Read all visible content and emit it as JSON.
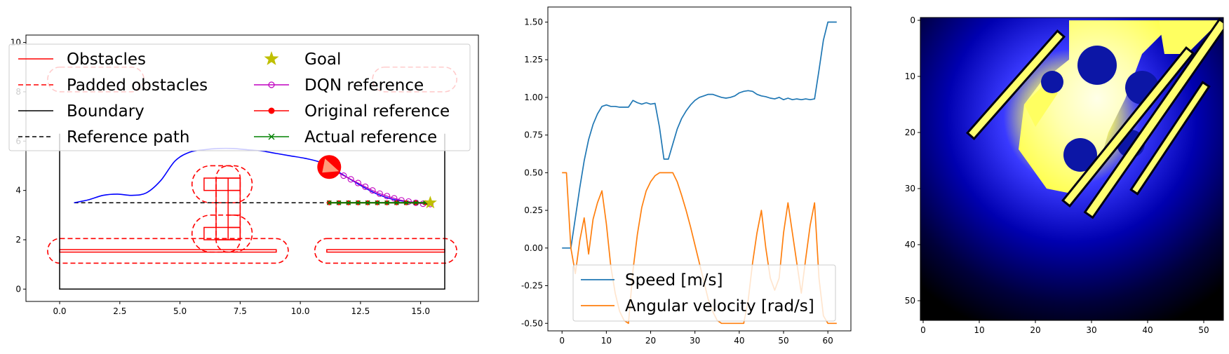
{
  "chart_data": [
    {
      "type": "line",
      "xlim": [
        -1.4,
        17.4
      ],
      "ylim": [
        -0.5,
        10.3
      ],
      "x_ticks": [
        "0.0",
        "2.5",
        "5.0",
        "7.5",
        "10.0",
        "12.5",
        "15.0"
      ],
      "x_tick_values": [
        0,
        2.5,
        5,
        7.5,
        10,
        12.5,
        15
      ],
      "y_ticks": [
        "0",
        "2",
        "4",
        "6",
        "8",
        "10"
      ],
      "y_tick_values": [
        0,
        2,
        4,
        6,
        8,
        10
      ],
      "legend_position": "upper",
      "legend": [
        "Obstacles",
        "Padded obstacles",
        "Boundary",
        "Reference path",
        "Goal",
        "DQN reference",
        "Original reference",
        "Actual reference"
      ],
      "colors": {
        "obstacles": "#ff0000",
        "dqn": "#c000c0",
        "actual": "#008000",
        "goal": "#bfbf00",
        "path": "#0000ff"
      },
      "boundary": [
        [
          0,
          0
        ],
        [
          16,
          0
        ],
        [
          16,
          6.3
        ],
        [
          0,
          6.3
        ]
      ],
      "obstacles": [
        {
          "x0": 0,
          "y0": 1.5,
          "x1": 9.0,
          "y1": 1.6
        },
        {
          "x0": 11.1,
          "y0": 1.5,
          "x1": 16.0,
          "y1": 1.6
        },
        {
          "x0": 6.0,
          "y0": 2.0,
          "x1": 7.5,
          "y1": 2.5
        },
        {
          "x0": 6.0,
          "y0": 4.0,
          "x1": 7.5,
          "y1": 4.5
        },
        {
          "x0": 6.5,
          "y0": 2.0,
          "x1": 7.5,
          "y1": 4.5
        }
      ],
      "padded_obstacles": [
        {
          "x0": -0.5,
          "y0": 1.05,
          "x1": 9.5,
          "y1": 2.05
        },
        {
          "x0": 10.6,
          "y0": 1.05,
          "x1": 16.5,
          "y1": 2.05
        },
        {
          "x0": 5.5,
          "y0": 1.5,
          "x1": 8.0,
          "y1": 3.0
        },
        {
          "x0": 5.5,
          "y0": 3.5,
          "x1": 8.0,
          "y1": 5.0
        },
        {
          "x0": 6.5,
          "y0": 1.5,
          "x1": 7.5,
          "y1": 5.0
        },
        {
          "x0": -0.5,
          "y0": 8.0,
          "x1": 3.5,
          "y1": 9.0
        },
        {
          "x0": 13.0,
          "y0": 8.0,
          "x1": 16.5,
          "y1": 9.0
        }
      ],
      "reference_path": {
        "x": [
          0.6,
          15.4
        ],
        "y": [
          3.5,
          3.5
        ]
      },
      "trajectory": {
        "x": [
          0.6,
          1.2,
          1.8,
          2.4,
          3.0,
          3.6,
          4.2,
          4.8,
          5.4,
          6.0,
          6.6,
          7.2,
          7.8,
          8.4,
          9.0,
          9.6,
          10.2,
          10.8,
          11.4,
          12.0,
          12.6,
          13.2,
          13.8,
          14.4,
          15.0,
          15.4
        ],
        "y": [
          3.5,
          3.62,
          3.8,
          3.85,
          3.8,
          3.9,
          4.4,
          5.2,
          5.55,
          5.65,
          5.7,
          5.7,
          5.65,
          5.6,
          5.5,
          5.4,
          5.3,
          5.15,
          4.85,
          4.5,
          4.15,
          3.85,
          3.65,
          3.55,
          3.5,
          3.5
        ]
      },
      "dqn_reference": {
        "x": [
          11.2,
          11.5,
          11.8,
          12.1,
          12.4,
          12.7,
          13.0,
          13.3,
          13.6,
          13.9,
          14.2,
          14.5,
          14.8,
          15.1,
          15.4
        ],
        "y": [
          4.9,
          4.75,
          4.6,
          4.45,
          4.3,
          4.15,
          4.0,
          3.87,
          3.77,
          3.68,
          3.6,
          3.55,
          3.5,
          3.46,
          3.45
        ]
      },
      "original_reference": {
        "x": [
          11.2,
          11.6,
          12.0,
          12.4,
          12.8,
          13.2,
          13.6,
          14.0,
          14.4,
          14.8,
          15.2
        ],
        "y": [
          3.5,
          3.5,
          3.5,
          3.5,
          3.5,
          3.5,
          3.5,
          3.5,
          3.5,
          3.5,
          3.5
        ]
      },
      "actual_reference": {
        "x": [
          11.2,
          11.6,
          12.0,
          12.4,
          12.8,
          13.2,
          13.6,
          14.0,
          14.4,
          14.8,
          15.2
        ],
        "y": [
          3.5,
          3.5,
          3.5,
          3.5,
          3.5,
          3.5,
          3.5,
          3.5,
          3.5,
          3.5,
          3.5
        ]
      },
      "goal": {
        "x": 15.4,
        "y": 3.5
      },
      "robot": {
        "x": 11.2,
        "y": 4.95
      }
    },
    {
      "type": "line",
      "xlim": [
        -3.2,
        65.2
      ],
      "ylim": [
        -0.55,
        1.6
      ],
      "x_ticks": [
        "0",
        "10",
        "20",
        "30",
        "40",
        "50",
        "60"
      ],
      "x_tick_values": [
        0,
        10,
        20,
        30,
        40,
        50,
        60
      ],
      "y_ticks": [
        "-0.50",
        "-0.25",
        "0.00",
        "0.25",
        "0.50",
        "0.75",
        "1.00",
        "1.25",
        "1.50"
      ],
      "y_tick_values": [
        -0.5,
        -0.25,
        0,
        0.25,
        0.5,
        0.75,
        1.0,
        1.25,
        1.5
      ],
      "legend_position": "lower center",
      "series": [
        {
          "name": "Speed [m/s]",
          "color": "#1f77b4",
          "x": [
            0,
            1,
            2,
            3,
            4,
            5,
            6,
            7,
            8,
            9,
            10,
            11,
            12,
            13,
            14,
            15,
            16,
            17,
            18,
            19,
            20,
            21,
            22,
            23,
            24,
            25,
            26,
            27,
            28,
            29,
            30,
            31,
            32,
            33,
            34,
            35,
            36,
            37,
            38,
            39,
            40,
            41,
            42,
            43,
            44,
            45,
            46,
            47,
            48,
            49,
            50,
            51,
            52,
            53,
            54,
            55,
            56,
            57,
            58,
            59,
            60,
            61,
            62
          ],
          "y": [
            0,
            0,
            0,
            0.2,
            0.4,
            0.58,
            0.72,
            0.82,
            0.89,
            0.94,
            0.95,
            0.94,
            0.94,
            0.935,
            0.935,
            0.935,
            0.98,
            0.965,
            0.955,
            0.965,
            0.955,
            0.96,
            0.8,
            0.59,
            0.59,
            0.69,
            0.79,
            0.86,
            0.91,
            0.95,
            0.98,
            1.0,
            1.01,
            1.02,
            1.02,
            1.01,
            1.0,
            0.995,
            1.0,
            1.01,
            1.03,
            1.04,
            1.045,
            1.04,
            1.02,
            1.01,
            1.005,
            0.995,
            0.99,
            1.0,
            0.985,
            0.995,
            0.985,
            0.99,
            0.985,
            0.99,
            0.985,
            0.99,
            1.18,
            1.38,
            1.5,
            1.5,
            1.5
          ]
        },
        {
          "name": "Angular velocity [rad/s]",
          "color": "#ff7f0e",
          "x": [
            0,
            1,
            2,
            3,
            4,
            5,
            6,
            7,
            8,
            9,
            10,
            11,
            12,
            13,
            14,
            15,
            16,
            17,
            18,
            19,
            20,
            21,
            22,
            23,
            24,
            25,
            26,
            27,
            28,
            29,
            30,
            31,
            32,
            33,
            34,
            35,
            36,
            37,
            38,
            39,
            40,
            41,
            42,
            43,
            44,
            45,
            46,
            47,
            48,
            49,
            50,
            51,
            52,
            53,
            54,
            55,
            56,
            57,
            58,
            59,
            60,
            61,
            62
          ],
          "y": [
            0.5,
            0.5,
            0.0,
            -0.17,
            0.05,
            0.2,
            -0.04,
            0.19,
            0.3,
            0.38,
            0.16,
            -0.12,
            -0.3,
            -0.42,
            -0.48,
            -0.5,
            -0.15,
            0.09,
            0.27,
            0.38,
            0.44,
            0.48,
            0.5,
            0.5,
            0.5,
            0.5,
            0.44,
            0.35,
            0.25,
            0.14,
            0.02,
            -0.1,
            -0.22,
            -0.34,
            -0.42,
            -0.48,
            -0.5,
            -0.5,
            -0.5,
            -0.5,
            -0.5,
            -0.5,
            -0.35,
            -0.1,
            0.1,
            0.25,
            0.0,
            -0.2,
            -0.28,
            -0.2,
            0.1,
            0.3,
            0.1,
            -0.1,
            -0.3,
            -0.07,
            0.15,
            0.3,
            -0.2,
            -0.45,
            -0.5,
            -0.5,
            -0.5
          ]
        }
      ]
    },
    {
      "type": "heatmap",
      "xlim": [
        -0.5,
        53.5
      ],
      "ylim": [
        53.5,
        -0.5
      ],
      "grid_size": 54,
      "x_ticks": [
        "0",
        "10",
        "20",
        "30",
        "40",
        "50"
      ],
      "x_tick_values": [
        0,
        10,
        20,
        30,
        40,
        50
      ],
      "y_ticks": [
        "0",
        "10",
        "20",
        "30",
        "40",
        "50"
      ],
      "y_tick_values": [
        0,
        10,
        20,
        30,
        40,
        50
      ],
      "colormap": [
        "#000000",
        "#0000b0",
        "#3a3aff",
        "#ffff60",
        "#ffffe8"
      ],
      "hot_center": {
        "x": 26,
        "y": 16
      },
      "yellow_region": [
        [
          26,
          0
        ],
        [
          45,
          0
        ],
        [
          39,
          6
        ],
        [
          36,
          14
        ],
        [
          33,
          20
        ],
        [
          31,
          27
        ],
        [
          27,
          31
        ],
        [
          22,
          30
        ],
        [
          17,
          23
        ],
        [
          18,
          15
        ],
        [
          21,
          11
        ],
        [
          26,
          7
        ]
      ],
      "yellow_blobs": [
        [
          [
            42,
            0
          ],
          [
            53,
            0
          ],
          [
            47,
            6
          ],
          [
            43,
            6
          ]
        ],
        [
          [
            18,
            15
          ],
          [
            22,
            11
          ],
          [
            24,
            13
          ],
          [
            20,
            19
          ]
        ]
      ],
      "stripes": [
        {
          "x0": 9,
          "y0": 20,
          "x1": 24,
          "y1": 3,
          "w": 1.2
        },
        {
          "x0": 30,
          "y0": 34,
          "x1": 53,
          "y1": 1,
          "w": 1.3
        },
        {
          "x0": 26,
          "y0": 32,
          "x1": 47,
          "y1": 6,
          "w": 1.2
        },
        {
          "x0": 38,
          "y0": 30,
          "x1": 50,
          "y1": 12,
          "w": 1.0
        }
      ],
      "dark_blobs": [
        {
          "x": 31,
          "y": 8,
          "r": 3.5
        },
        {
          "x": 39,
          "y": 12,
          "r": 3
        },
        {
          "x": 28,
          "y": 24,
          "r": 3
        },
        {
          "x": 37,
          "y": 22,
          "r": 2.5
        },
        {
          "x": 23,
          "y": 11,
          "r": 2
        }
      ]
    }
  ],
  "legend_entries": [
    {
      "label": "Obstacles",
      "style": "obstacles"
    },
    {
      "label": "Padded obstacles",
      "style": "padded"
    },
    {
      "label": "Boundary",
      "style": "boundary"
    },
    {
      "label": "Reference path",
      "style": "refpath"
    },
    {
      "label": "Goal",
      "style": "goal"
    },
    {
      "label": "DQN reference",
      "style": "dqn"
    },
    {
      "label": "Original reference",
      "style": "original"
    },
    {
      "label": "Actual reference",
      "style": "actual"
    }
  ]
}
